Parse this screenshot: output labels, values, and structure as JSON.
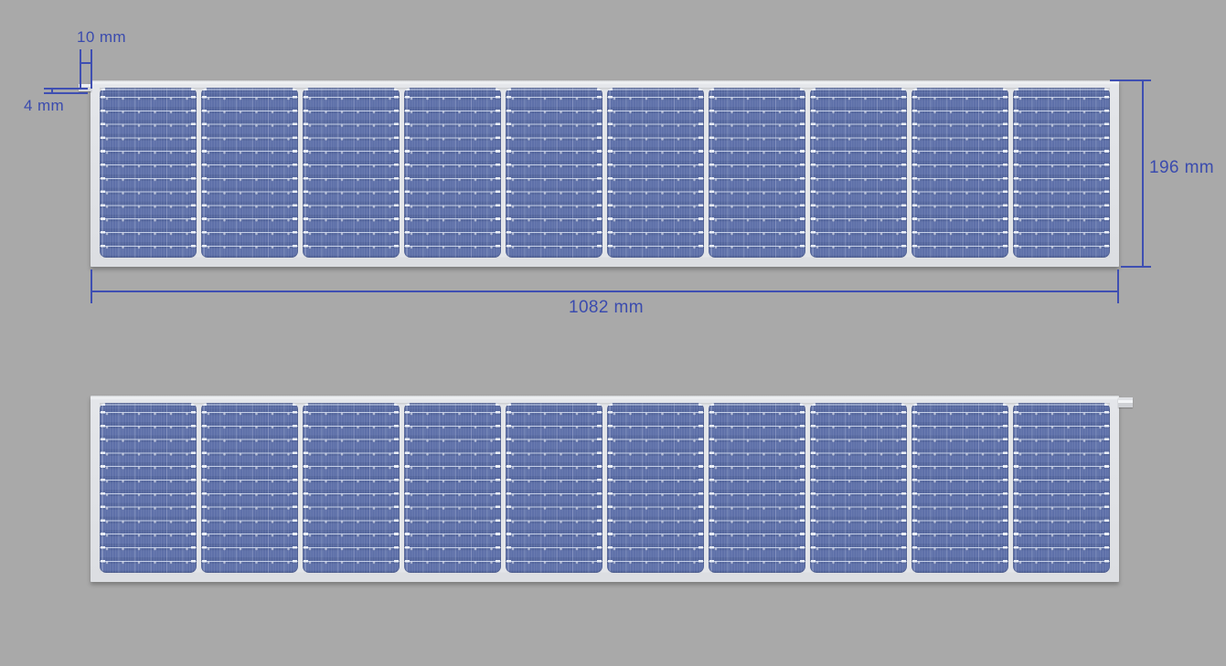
{
  "drawing": {
    "modules": [
      {
        "name": "module-top",
        "cell_count": 10,
        "busbar_count": 12,
        "connector_tab": "top-left"
      },
      {
        "name": "module-bottom",
        "cell_count": 10,
        "busbar_count": 12,
        "connector_tab": "top-right"
      }
    ]
  },
  "dimensions": {
    "tab_width": {
      "label": "10 mm"
    },
    "tab_height": {
      "label": "4 mm"
    },
    "module_height": {
      "label": "196 mm"
    },
    "module_width": {
      "label": "1082 mm"
    }
  },
  "colors": {
    "background": "#a9a9a9",
    "dimension_accent": "#3a4bae",
    "frame": "#dfe1e5",
    "cell_base": "#5c6ea7",
    "cell_band_dark": "#55679e",
    "busbar": "#d8e2f3"
  }
}
